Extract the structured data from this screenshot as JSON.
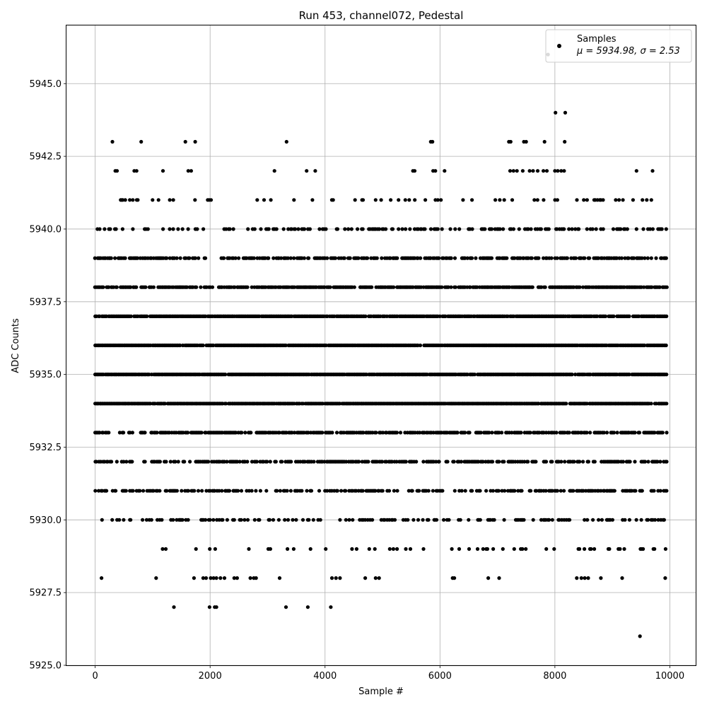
{
  "chart_data": {
    "type": "scatter",
    "title": "Run 453, channel072, Pedestal",
    "xlabel": "Sample #",
    "ylabel": "ADC Counts",
    "xlim": [
      -500,
      10450
    ],
    "ylim": [
      5925.0,
      5947.0
    ],
    "xticks": [
      0,
      2000,
      4000,
      6000,
      8000,
      10000
    ],
    "xtick_labels": [
      "0",
      "2000",
      "4000",
      "6000",
      "8000",
      "10000"
    ],
    "yticks": [
      5925.0,
      5927.5,
      5930.0,
      5932.5,
      5935.0,
      5937.5,
      5940.0,
      5942.5,
      5945.0
    ],
    "ytick_labels": [
      "5925.0",
      "5927.5",
      "5930.0",
      "5932.5",
      "5935.0",
      "5937.5",
      "5940.0",
      "5942.5",
      "5945.0"
    ],
    "grid": true,
    "legend": {
      "placement": "top-right",
      "series_label": "Samples",
      "stats_label": "μ = 5934.98, σ = 2.53"
    },
    "series": [
      {
        "name": "Samples",
        "color": "#000000",
        "level_distribution": [
          {
            "adc": 5934,
            "x_ranges": [
              [
                0,
                9950
              ]
            ]
          },
          {
            "adc": 5935,
            "x_ranges": [
              [
                0,
                9950
              ]
            ]
          },
          {
            "adc": 5936,
            "x_ranges": [
              [
                0,
                9950
              ]
            ]
          },
          {
            "adc": 5937,
            "x_ranges": [
              [
                0,
                9950
              ]
            ]
          },
          {
            "adc": 5933,
            "x_ranges": [
              [
                0,
                250
              ],
              [
                350,
                9950
              ]
            ]
          },
          {
            "adc": 5938,
            "x_ranges": [
              [
                0,
                2050
              ],
              [
                2150,
                9950
              ]
            ]
          },
          {
            "adc": 5939,
            "x_ranges": [
              [
                0,
                1950
              ],
              [
                2200,
                9950
              ]
            ]
          },
          {
            "adc": 5932,
            "x_ranges": [
              [
                0,
                650
              ],
              [
                850,
                9950
              ]
            ]
          },
          {
            "adc": 5931,
            "x_ranges": [
              [
                0,
                9950
              ]
            ]
          },
          {
            "adc": 5930,
            "x_ranges": [
              [
                100,
                9950
              ]
            ]
          },
          {
            "adc": 5940,
            "x_ranges": [
              [
                0,
                9950
              ]
            ]
          },
          {
            "adc": 5929,
            "x_ranges": [
              [
                950,
                9950
              ]
            ]
          },
          {
            "adc": 5941,
            "x_ranges": [
              [
                0,
                9950
              ]
            ]
          }
        ],
        "points": [
          [
            300,
            5943
          ],
          [
            800,
            5943
          ],
          [
            1570,
            5943
          ],
          [
            1740,
            5943
          ],
          [
            3330,
            5943
          ],
          [
            5840,
            5943
          ],
          [
            5870,
            5943
          ],
          [
            7200,
            5943
          ],
          [
            7230,
            5943
          ],
          [
            7460,
            5943
          ],
          [
            7500,
            5943
          ],
          [
            7820,
            5943
          ],
          [
            8170,
            5943
          ],
          [
            8010,
            5944
          ],
          [
            8180,
            5944
          ],
          [
            7880,
            5946
          ],
          [
            350,
            5942
          ],
          [
            380,
            5942
          ],
          [
            680,
            5942
          ],
          [
            720,
            5942
          ],
          [
            1180,
            5942
          ],
          [
            1620,
            5942
          ],
          [
            1670,
            5942
          ],
          [
            3120,
            5942
          ],
          [
            3680,
            5942
          ],
          [
            3830,
            5942
          ],
          [
            5530,
            5942
          ],
          [
            5560,
            5942
          ],
          [
            5880,
            5942
          ],
          [
            5920,
            5942
          ],
          [
            6080,
            5942
          ],
          [
            7220,
            5942
          ],
          [
            7280,
            5942
          ],
          [
            7340,
            5942
          ],
          [
            7440,
            5942
          ],
          [
            7560,
            5942
          ],
          [
            7620,
            5942
          ],
          [
            7700,
            5942
          ],
          [
            7800,
            5942
          ],
          [
            7860,
            5942
          ],
          [
            8000,
            5942
          ],
          [
            8050,
            5942
          ],
          [
            8110,
            5942
          ],
          [
            8160,
            5942
          ],
          [
            9420,
            5942
          ],
          [
            9700,
            5942
          ],
          [
            110,
            5928
          ],
          [
            1060,
            5928
          ],
          [
            1720,
            5928
          ],
          [
            1880,
            5928
          ],
          [
            1930,
            5928
          ],
          [
            2010,
            5928
          ],
          [
            2060,
            5928
          ],
          [
            2110,
            5928
          ],
          [
            2180,
            5928
          ],
          [
            2250,
            5928
          ],
          [
            2420,
            5928
          ],
          [
            2470,
            5928
          ],
          [
            2700,
            5928
          ],
          [
            2760,
            5928
          ],
          [
            2800,
            5928
          ],
          [
            3210,
            5928
          ],
          [
            4120,
            5928
          ],
          [
            4190,
            5928
          ],
          [
            4260,
            5928
          ],
          [
            4700,
            5928
          ],
          [
            4880,
            5928
          ],
          [
            4940,
            5928
          ],
          [
            6220,
            5928
          ],
          [
            6250,
            5928
          ],
          [
            6840,
            5928
          ],
          [
            7030,
            5928
          ],
          [
            8380,
            5928
          ],
          [
            8460,
            5928
          ],
          [
            8520,
            5928
          ],
          [
            8580,
            5928
          ],
          [
            8800,
            5928
          ],
          [
            9170,
            5928
          ],
          [
            9920,
            5928
          ],
          [
            1370,
            5927
          ],
          [
            1990,
            5927
          ],
          [
            2080,
            5927
          ],
          [
            2110,
            5927
          ],
          [
            3320,
            5927
          ],
          [
            3700,
            5927
          ],
          [
            4100,
            5927
          ],
          [
            9480,
            5926
          ]
        ]
      }
    ]
  }
}
